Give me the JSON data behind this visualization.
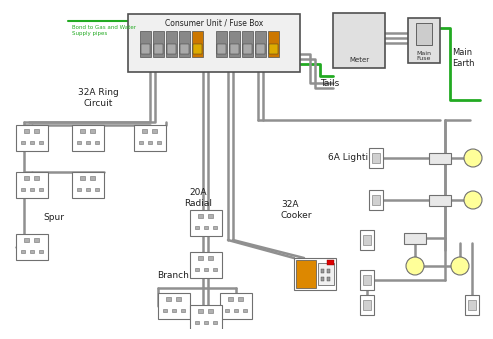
{
  "bg_color": "#ffffff",
  "wire_color": "#909090",
  "green_color": "#22aa22",
  "title": "Consumer Unit / Fuse Box",
  "bond_label": "Bond to Gas and Water\nSupply pipes",
  "tails_label": "Tails",
  "main_earth_label": "Main\nEarth",
  "ring_label": "32A Ring\nCircuit",
  "radial_label": "20A\nRadial",
  "spur_label": "Spur",
  "branch_label": "Branch",
  "cooker_label": "32A\nCooker",
  "lighting_label": "6A Lighting",
  "meter_label": "Meter",
  "fuse_label": "Main\nFuse",
  "socket_color": "#ffffff",
  "socket_border": "#707070",
  "light_fill": "#ffff99",
  "switch_color": "#e8e8e8",
  "cu_fill": "#f0f0f0",
  "meter_fill": "#e0e0e0"
}
